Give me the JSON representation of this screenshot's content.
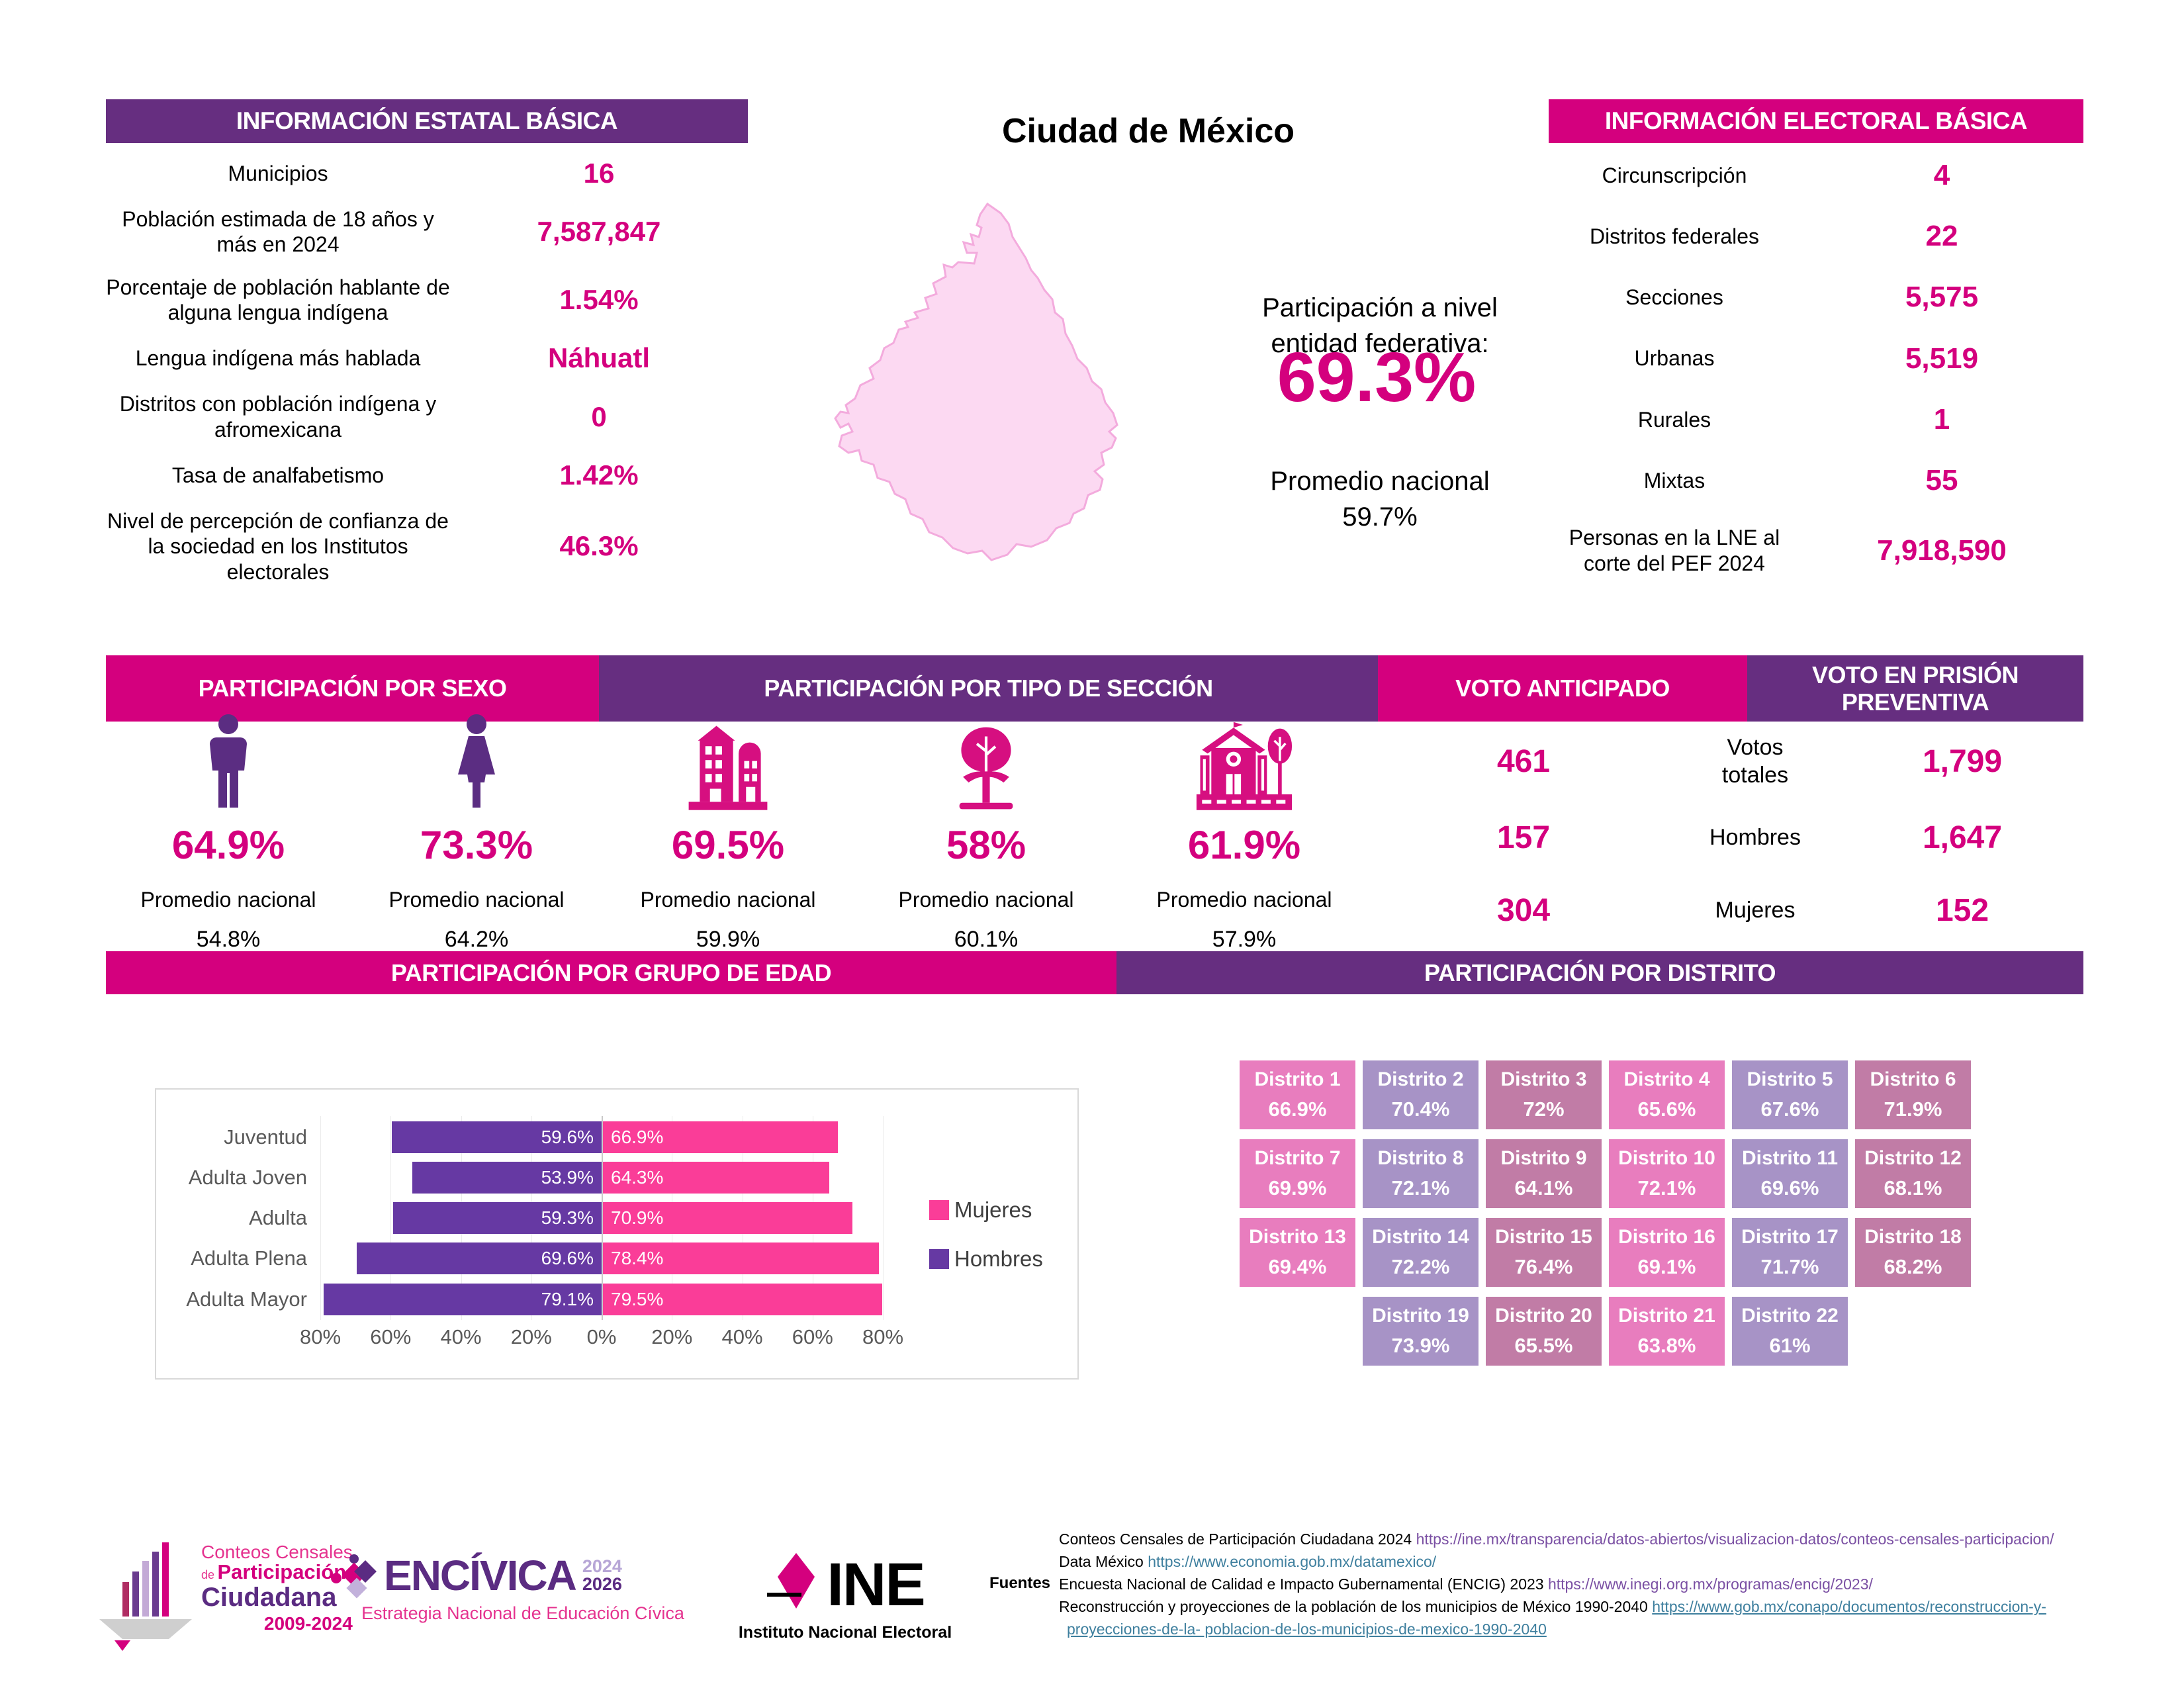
{
  "title": "Ciudad de México",
  "palette": {
    "magenta": "#d4007e",
    "purple": "#662e80",
    "icon_purple": "#5b2d82",
    "icon_pink": "#d60f80",
    "district_pink": "#e87dbe",
    "district_lavender": "#a793c6",
    "district_mauve": "#c17ca6",
    "bar_pink": "#fa3d98",
    "bar_purple": "#6639a3",
    "map_fill": "#fcd9f2",
    "map_stroke": "#f3abdd"
  },
  "estatal": {
    "header": "INFORMACIÓN ESTATAL BÁSICA",
    "rows": [
      {
        "label": "Municipios",
        "value": "16"
      },
      {
        "label": "Población estimada de 18 años y más en 2024",
        "value": "7,587,847"
      },
      {
        "label": "Porcentaje de población hablante de alguna lengua indígena",
        "value": "1.54%"
      },
      {
        "label": "Lengua indígena más hablada",
        "value": "Náhuatl"
      },
      {
        "label": "Distritos con población indígena y afromexicana",
        "value": "0"
      },
      {
        "label": "Tasa de analfabetismo",
        "value": "1.42%"
      },
      {
        "label": "Nivel de percepción de confianza de la sociedad en los Institutos electorales",
        "value": "46.3%"
      }
    ]
  },
  "electoral": {
    "header": "INFORMACIÓN ELECTORAL BÁSICA",
    "rows": [
      {
        "label": "Circunscripción",
        "value": "4"
      },
      {
        "label": "Distritos federales",
        "value": "22"
      },
      {
        "label": "Secciones",
        "value": "5,575"
      },
      {
        "label": "Urbanas",
        "value": "5,519"
      },
      {
        "label": "Rurales",
        "value": "1"
      },
      {
        "label": "Mixtas",
        "value": "55"
      },
      {
        "label": "Personas en la LNE al corte del PEF 2024",
        "value": "7,918,590"
      }
    ]
  },
  "center": {
    "intro": "Participación a nivel entidad federativa:",
    "value": "69.3%",
    "promedio_label": "Promedio nacional",
    "promedio_value": "59.7%"
  },
  "bands": {
    "sexo": "PARTICIPACIÓN POR SEXO",
    "seccion": "PARTICIPACIÓN POR TIPO DE SECCIÓN",
    "anticipado": "VOTO ANTICIPADO",
    "prision": "VOTO EN PRISIÓN PREVENTIVA",
    "edad": "PARTICIPACIÓN POR GRUPO DE EDAD",
    "distrito": "PARTICIPACIÓN POR DISTRITO"
  },
  "stats": {
    "promedio_label": "Promedio nacional",
    "items": [
      {
        "icon": "man-icon",
        "value": "64.9%",
        "promedio": "54.8%"
      },
      {
        "icon": "woman-icon",
        "value": "73.3%",
        "promedio": "64.2%"
      },
      {
        "icon": "building-icon",
        "value": "69.5%",
        "promedio": "59.9%"
      },
      {
        "icon": "tree-icon",
        "value": "58%",
        "promedio": "60.1%"
      },
      {
        "icon": "school-icon",
        "value": "61.9%",
        "promedio": "57.9%"
      }
    ]
  },
  "voto": {
    "rows": [
      {
        "anticipado": "461",
        "label": "Votos totales",
        "prision": "1,799"
      },
      {
        "anticipado": "157",
        "label": "Hombres",
        "prision": "1,647"
      },
      {
        "anticipado": "304",
        "label": "Mujeres",
        "prision": "152"
      }
    ]
  },
  "chart_data": {
    "type": "bar",
    "orientation": "horizontal-diverging",
    "title": "PARTICIPACIÓN POR GRUPO DE EDAD",
    "categories": [
      "Juventud",
      "Adulta Joven",
      "Adulta",
      "Adulta Plena",
      "Adulta Mayor"
    ],
    "series": [
      {
        "name": "Hombres",
        "side": "left",
        "values": [
          59.6,
          53.9,
          59.3,
          69.6,
          79.1
        ],
        "labels": [
          "59.6%",
          "53.9%",
          "59.3%",
          "69.6%",
          "79.1%"
        ]
      },
      {
        "name": "Mujeres",
        "side": "right",
        "values": [
          66.9,
          64.3,
          70.9,
          78.4,
          79.5
        ],
        "labels": [
          "66.9%",
          "64.3%",
          "70.9%",
          "78.4%",
          "79.5%"
        ]
      }
    ],
    "x_ticks": [
      "80%",
      "60%",
      "40%",
      "20%",
      "0%",
      "20%",
      "40%",
      "60%",
      "80%"
    ],
    "xlim": [
      -80,
      80
    ],
    "grid": true,
    "legend_position": "right"
  },
  "districts": [
    {
      "name": "Distrito 1",
      "value": "66.9%",
      "tone": "pink"
    },
    {
      "name": "Distrito 2",
      "value": "70.4%",
      "tone": "lavender"
    },
    {
      "name": "Distrito 3",
      "value": "72%",
      "tone": "mauve"
    },
    {
      "name": "Distrito 4",
      "value": "65.6%",
      "tone": "pink"
    },
    {
      "name": "Distrito 5",
      "value": "67.6%",
      "tone": "lavender"
    },
    {
      "name": "Distrito 6",
      "value": "71.9%",
      "tone": "mauve"
    },
    {
      "name": "Distrito 7",
      "value": "69.9%",
      "tone": "pink"
    },
    {
      "name": "Distrito 8",
      "value": "72.1%",
      "tone": "lavender"
    },
    {
      "name": "Distrito 9",
      "value": "64.1%",
      "tone": "mauve"
    },
    {
      "name": "Distrito 10",
      "value": "72.1%",
      "tone": "pink"
    },
    {
      "name": "Distrito 11",
      "value": "69.6%",
      "tone": "lavender"
    },
    {
      "name": "Distrito 12",
      "value": "68.1%",
      "tone": "mauve"
    },
    {
      "name": "Distrito 13",
      "value": "69.4%",
      "tone": "pink"
    },
    {
      "name": "Distrito 14",
      "value": "72.2%",
      "tone": "lavender"
    },
    {
      "name": "Distrito 15",
      "value": "76.4%",
      "tone": "mauve"
    },
    {
      "name": "Distrito 16",
      "value": "69.1%",
      "tone": "pink"
    },
    {
      "name": "Distrito 17",
      "value": "71.7%",
      "tone": "lavender"
    },
    {
      "name": "Distrito 18",
      "value": "68.2%",
      "tone": "mauve"
    },
    {
      "name": "Distrito 19",
      "value": "73.9%",
      "tone": "lavender"
    },
    {
      "name": "Distrito 20",
      "value": "65.5%",
      "tone": "mauve"
    },
    {
      "name": "Distrito 21",
      "value": "63.8%",
      "tone": "pink"
    },
    {
      "name": "Distrito 22",
      "value": "61%",
      "tone": "lavender"
    }
  ],
  "footer": {
    "conteos": {
      "line1": "Conteos Censales",
      "de": "de",
      "line2": "Participación",
      "line3": "Ciudadana",
      "line4": "2009-2024"
    },
    "encivica": {
      "name": "ENCÍVICA",
      "year_top": "2024",
      "year_bottom": "2026",
      "subtitle": "Estrategia Nacional de Educación Cívica"
    },
    "ine": {
      "name": "INE",
      "subtitle": "Instituto Nacional Electoral"
    }
  },
  "fuentes": {
    "label": "Fuentes",
    "lines": [
      {
        "text": "Conteos Censales de Participación Ciudadana 2024 ",
        "link": "https://ine.mx/transparencia/datos-abiertos/visualizacion-datos/conteos-censales-participacion/",
        "style": "purple",
        "indent": false
      },
      {
        "text": "Data México ",
        "link": "https://www.economia.gob.mx/datamexico/",
        "style": "teal",
        "indent": false
      },
      {
        "text": "Encuesta Nacional de Calidad e Impacto Gubernamental (ENCIG) 2023 ",
        "link": "https://www.inegi.org.mx/programas/encig/2023/",
        "style": "purple",
        "indent": false
      },
      {
        "text": "Reconstrucción y proyecciones de la población de los municipios de México 1990-2040 ",
        "link": "https://www.gob.mx/conapo/documentos/reconstruccion-y-",
        "style": "teal-underline",
        "indent": false
      },
      {
        "text": "",
        "link": "proyecciones-de-la-  poblacion-de-los-municipios-de-mexico-1990-2040",
        "style": "teal-underline",
        "indent": true
      }
    ]
  }
}
